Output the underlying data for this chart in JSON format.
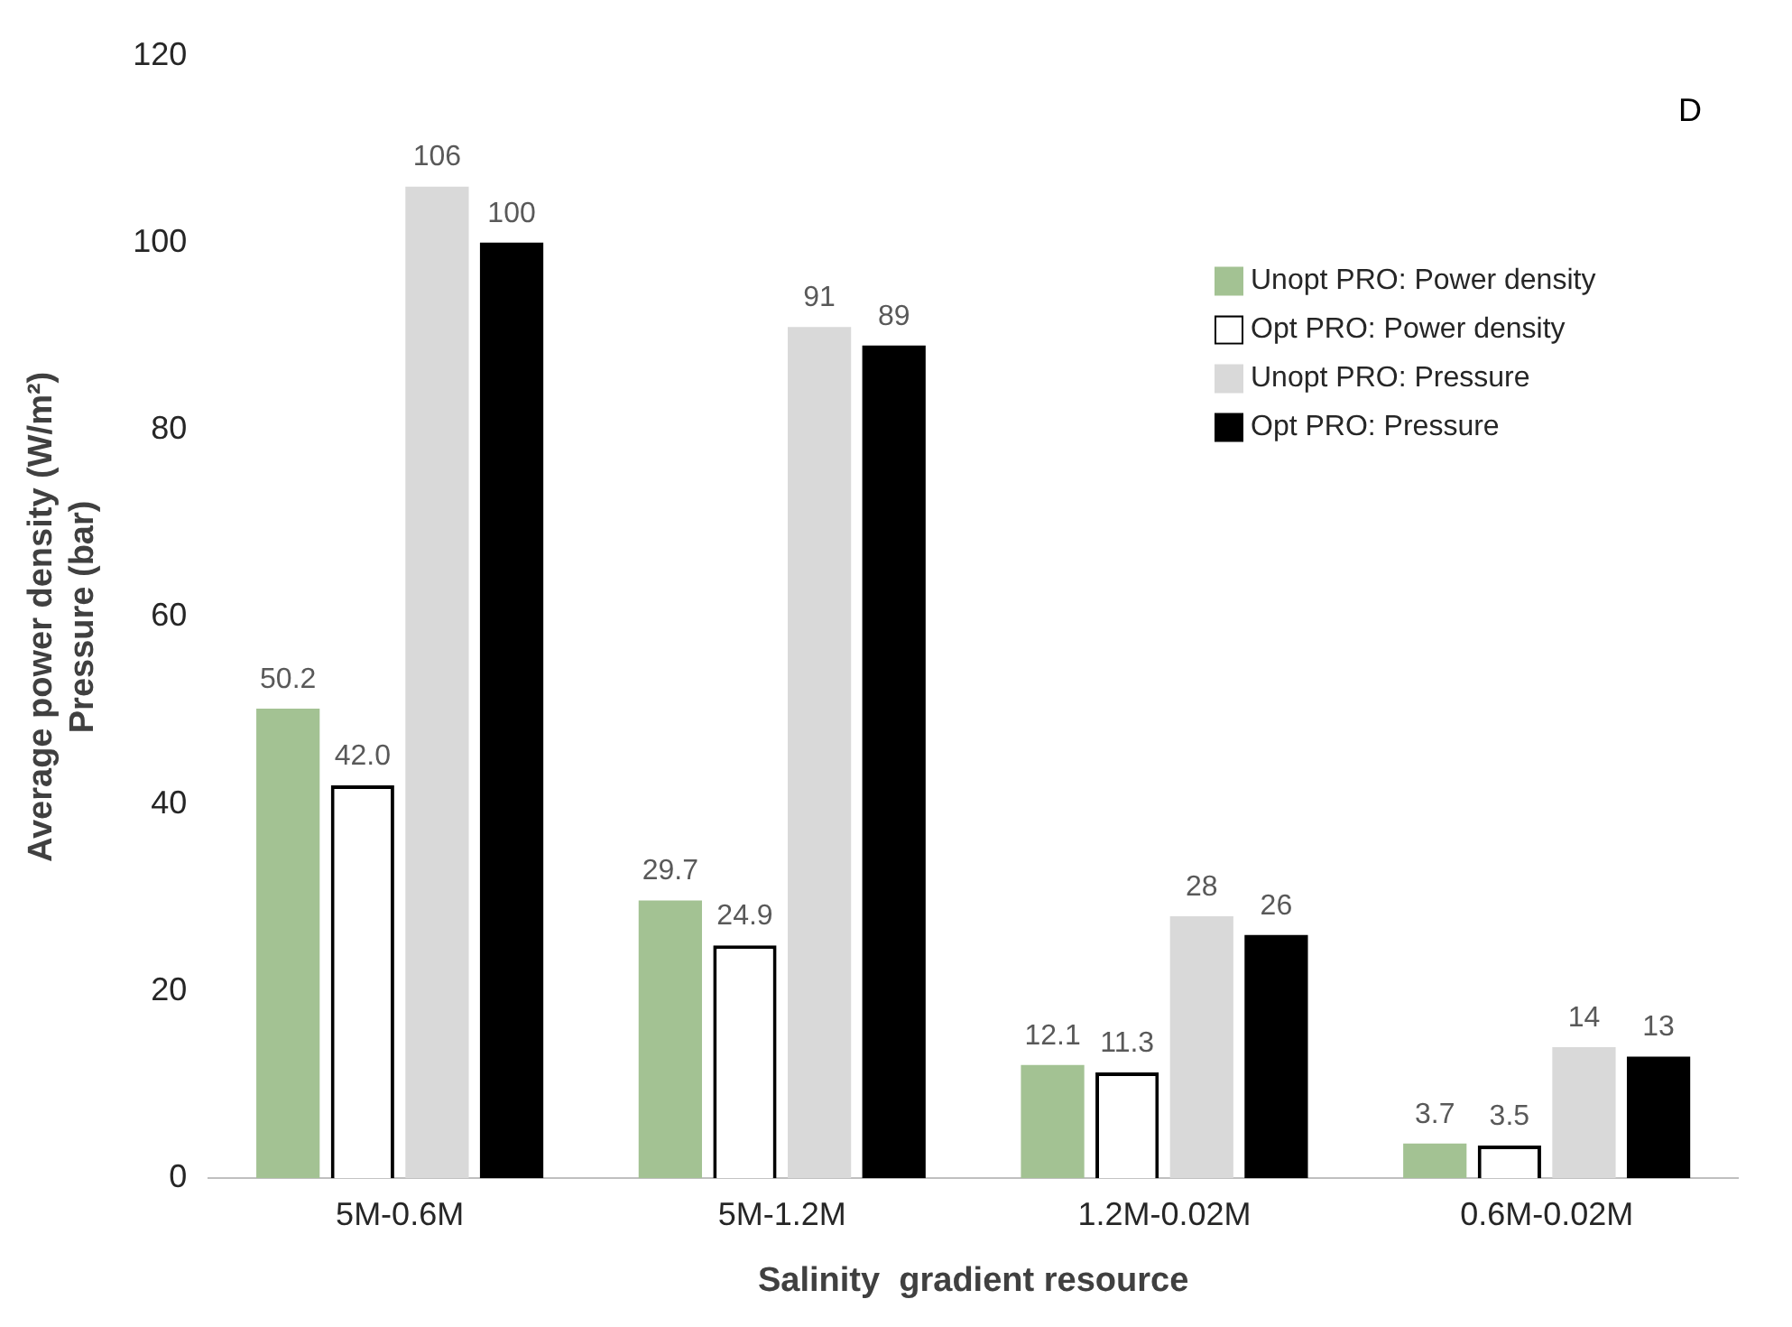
{
  "chart_data": {
    "type": "bar",
    "xlabel": "Salinity  gradient resource",
    "ylabel": "Average power density (W/m²)\nPressure (bar)",
    "annotations": [
      "D"
    ],
    "categories": [
      "5M-0.6M",
      "5M-1.2M",
      "1.2M-0.02M",
      "0.6M-0.02M"
    ],
    "series": [
      {
        "name": "Unopt PRO: Power density",
        "color": "#a3c293",
        "values": [
          50.2,
          29.7,
          12.1,
          3.7
        ],
        "value_labels": [
          "50.2",
          "29.7",
          "12.1",
          "3.7"
        ]
      },
      {
        "name": "Opt PRO: Power density",
        "color": "#ffffff",
        "values": [
          42.0,
          24.9,
          11.3,
          3.5
        ],
        "value_labels": [
          "42.0",
          "24.9",
          "11.3",
          "3.5"
        ]
      },
      {
        "name": "Unopt PRO: Pressure",
        "color": "#d9d9d9",
        "values": [
          106,
          91,
          28,
          14
        ],
        "value_labels": [
          "106",
          "91",
          "28",
          "14"
        ]
      },
      {
        "name": "Opt PRO: Pressure",
        "color": "#000000",
        "values": [
          100,
          89,
          26,
          13
        ],
        "value_labels": [
          "100",
          "89",
          "26",
          "13"
        ]
      }
    ],
    "ylim": [
      0,
      120
    ],
    "yticks": [
      0,
      20,
      40,
      60,
      80,
      100,
      120
    ],
    "grid": false,
    "legend": "top right"
  }
}
